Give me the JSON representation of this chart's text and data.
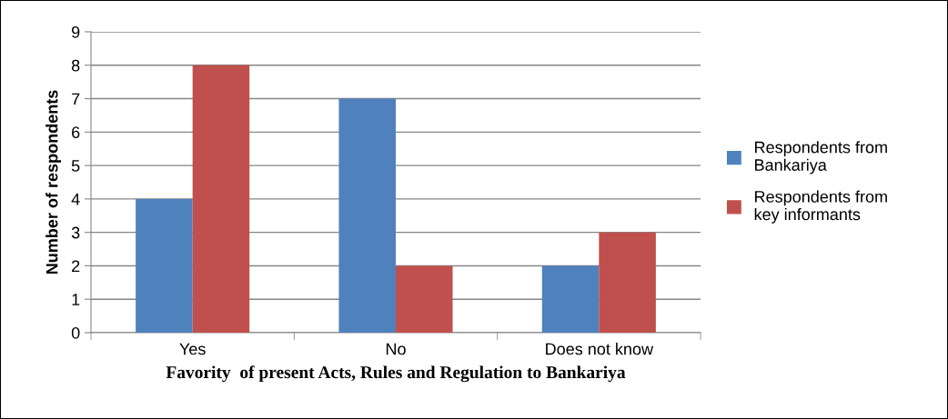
{
  "chart_data": {
    "type": "bar",
    "xlabel": "Favority  of present Acts, Rules and Regulation to Bankariya",
    "ylabel": "Number of respondents",
    "categories": [
      "Yes",
      "No",
      "Does not know"
    ],
    "series": [
      {
        "name": "Respondents from Bankariya",
        "color": "#4f81bd",
        "values": [
          4,
          7,
          2
        ]
      },
      {
        "name": "Respondents from key informants",
        "color": "#c0504d",
        "values": [
          8,
          2,
          3
        ]
      }
    ],
    "ylim": [
      0,
      9
    ],
    "yticks": [
      0,
      1,
      2,
      3,
      4,
      5,
      6,
      7,
      8,
      9
    ],
    "grid": "y",
    "legend": "right"
  }
}
